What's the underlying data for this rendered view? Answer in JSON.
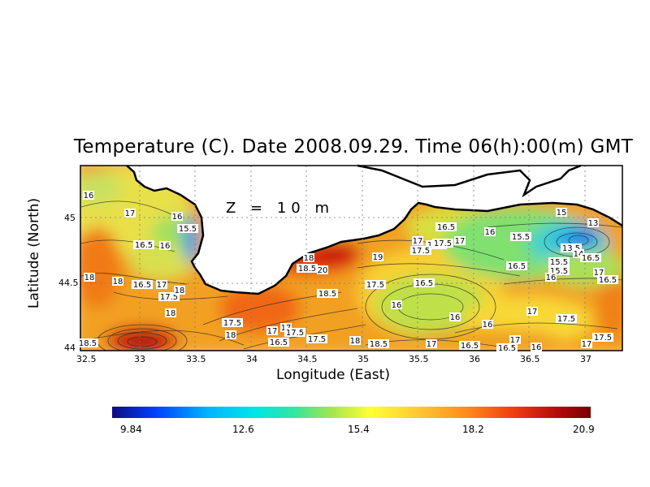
{
  "chart_data": {
    "type": "heatmap",
    "title": "Temperature (C). Date 2008.09.29. Time 06(h):00(m) GMT",
    "xlabel": "Longitude (East)",
    "ylabel": "Latitude (North)",
    "annotation": "Z = 10 m",
    "x_ticks": [
      "32.5",
      "33",
      "33.5",
      "34",
      "34.5",
      "35",
      "35.5",
      "36",
      "36.5",
      "37"
    ],
    "y_ticks": [
      "44",
      "44.5",
      "45"
    ],
    "colorbar": {
      "min": 9.84,
      "max": 20.9,
      "ticks": [
        "9.84",
        "12.6",
        "15.4",
        "18.2",
        "20.9"
      ],
      "colors": [
        "#0d0d80",
        "#0040ff",
        "#00b4ff",
        "#00e6e6",
        "#33e6a0",
        "#a6e64d",
        "#ffff33",
        "#ffc833",
        "#ff8c1a",
        "#f03c10",
        "#b40a0a",
        "#780000"
      ]
    },
    "contour_labels": [
      "16",
      "17",
      "16",
      "15.5",
      "16.5",
      "16",
      "18",
      "18",
      "16.5",
      "17",
      "17.5",
      "18",
      "18",
      "18.5",
      "18",
      "17.5",
      "17",
      "16.5",
      "17",
      "17.5",
      "18",
      "18.5",
      "20",
      "18.5",
      "19",
      "17.5",
      "17",
      "17.5",
      "17",
      "16.5",
      "16",
      "16.5",
      "17.5",
      "17.5",
      "17",
      "16",
      "15",
      "13",
      "15.5",
      "13.5",
      "14",
      "16.5",
      "16.5",
      "15.5",
      "15.5",
      "16",
      "17",
      "16.5",
      "17",
      "16",
      "16",
      "17",
      "17.5",
      "17.5",
      "17",
      "16.5",
      "16.5",
      "16",
      "17",
      "18",
      "18.5",
      "17.5"
    ]
  }
}
